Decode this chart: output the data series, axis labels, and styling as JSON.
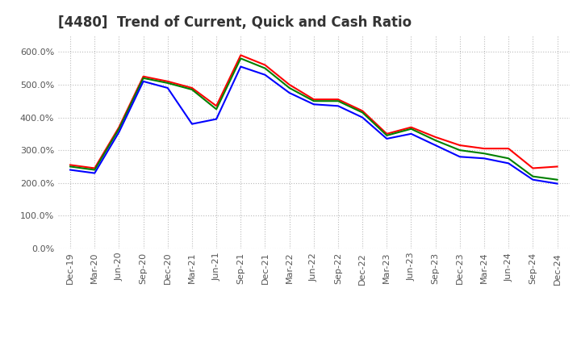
{
  "title": "[4480]  Trend of Current, Quick and Cash Ratio",
  "ylim": [
    0.0,
    6.5
  ],
  "yticks": [
    0.0,
    1.0,
    2.0,
    3.0,
    4.0,
    5.0,
    6.0
  ],
  "ytick_labels": [
    "0.0%",
    "100.0%",
    "200.0%",
    "300.0%",
    "400.0%",
    "500.0%",
    "600.0%"
  ],
  "x_labels": [
    "Dec-19",
    "Mar-20",
    "Jun-20",
    "Sep-20",
    "Dec-20",
    "Mar-21",
    "Jun-21",
    "Sep-21",
    "Dec-21",
    "Mar-22",
    "Jun-22",
    "Sep-22",
    "Dec-22",
    "Mar-23",
    "Jun-23",
    "Sep-23",
    "Dec-23",
    "Mar-24",
    "Jun-24",
    "Sep-24",
    "Dec-24"
  ],
  "current_ratio": [
    2.55,
    2.45,
    3.7,
    5.25,
    5.1,
    4.9,
    4.35,
    5.9,
    5.6,
    5.0,
    4.55,
    4.55,
    4.2,
    3.5,
    3.7,
    3.4,
    3.15,
    3.05,
    3.05,
    2.45,
    2.5
  ],
  "quick_ratio": [
    2.5,
    2.4,
    3.65,
    5.2,
    5.05,
    4.85,
    4.25,
    5.8,
    5.5,
    4.9,
    4.5,
    4.5,
    4.15,
    3.45,
    3.65,
    3.3,
    3.0,
    2.9,
    2.75,
    2.2,
    2.1
  ],
  "cash_ratio": [
    2.4,
    2.3,
    3.55,
    5.1,
    4.9,
    3.8,
    3.95,
    5.55,
    5.3,
    4.75,
    4.4,
    4.35,
    4.0,
    3.35,
    3.5,
    3.15,
    2.8,
    2.75,
    2.6,
    2.1,
    1.98
  ],
  "current_color": "#ff0000",
  "quick_color": "#008000",
  "cash_color": "#0000ff",
  "line_width": 1.5,
  "background_color": "#ffffff",
  "grid_color": "#bbbbbb",
  "title_fontsize": 12,
  "tick_fontsize": 8,
  "legend_fontsize": 9
}
